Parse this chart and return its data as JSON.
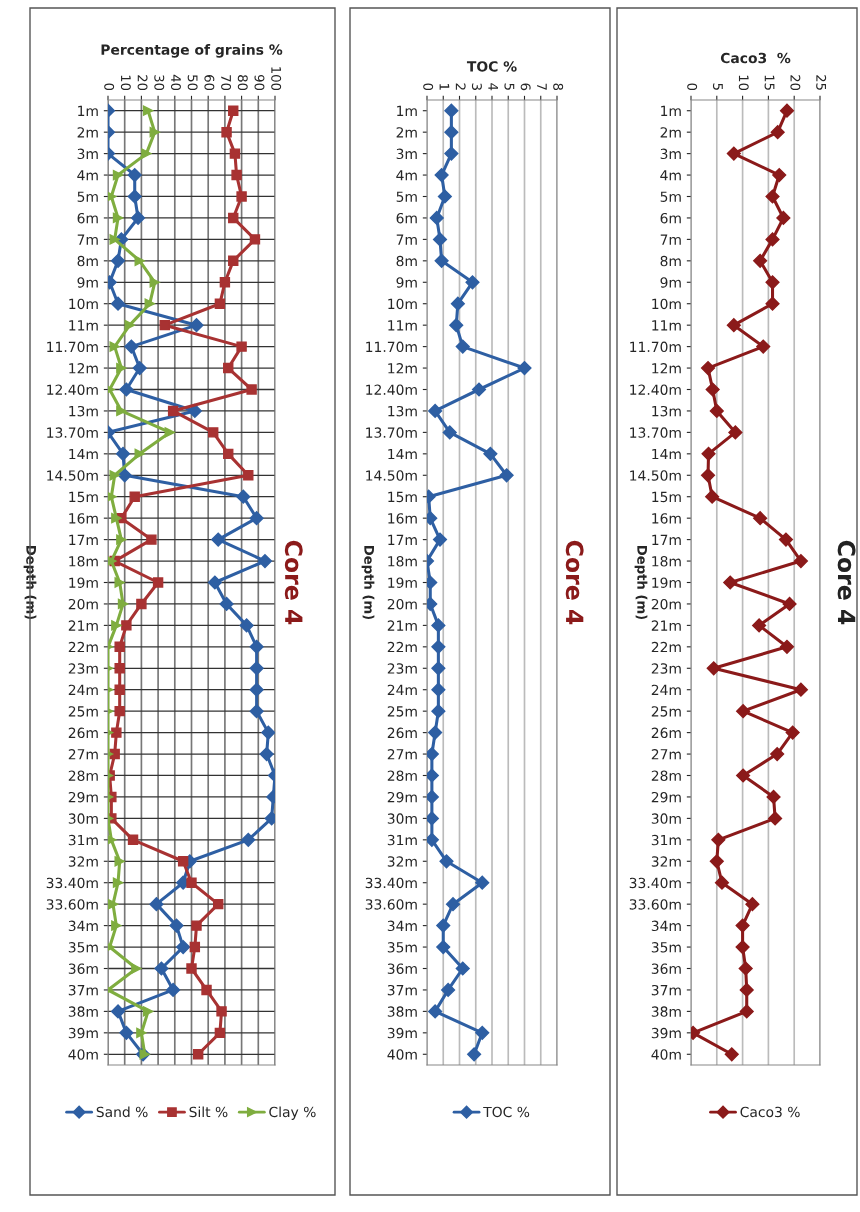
{
  "chart_data": [
    {
      "type": "line",
      "orientation": "horizontal",
      "title": "Core 4",
      "xlabel": "Percentage of grains %",
      "ylabel": "Depth (m)",
      "categories": [
        "1m",
        "2m",
        "3m",
        "4m",
        "5m",
        "6m",
        "7m",
        "8m",
        "9m",
        "10m",
        "11m",
        "11.70m",
        "12m",
        "12.40m",
        "13m",
        "13.70m",
        "14m",
        "14.50m",
        "15m",
        "16m",
        "17m",
        "18m",
        "19m",
        "20m",
        "21m",
        "22m",
        "23m",
        "24m",
        "25m",
        "26m",
        "27m",
        "28m",
        "29m",
        "30m",
        "31m",
        "32m",
        "33.40m",
        "33.60m",
        "34m",
        "35m",
        "36m",
        "37m",
        "38m",
        "39m",
        "40m"
      ],
      "series": [
        {
          "name": "Sand %",
          "color": "#2e5fa3",
          "marker": "diamond",
          "values": [
            0,
            0,
            0,
            16,
            16,
            18,
            8,
            6,
            1,
            6,
            53,
            14,
            19,
            11,
            52,
            0,
            9,
            10,
            81,
            89,
            66,
            94,
            64,
            71,
            83,
            89,
            89,
            89,
            89,
            96,
            95,
            100,
            99,
            98,
            84,
            49,
            45,
            29,
            41,
            45,
            32,
            39,
            6,
            11,
            21
          ]
        },
        {
          "name": "Silt %",
          "color": "#a83232",
          "marker": "square",
          "values": [
            75,
            71,
            76,
            77,
            80,
            75,
            88,
            75,
            70,
            67,
            34,
            80,
            72,
            86,
            39,
            63,
            72,
            84,
            16,
            8,
            26,
            4,
            30,
            20,
            11,
            7,
            7,
            7,
            7,
            5,
            4,
            1,
            2,
            2,
            15,
            45,
            50,
            66,
            53,
            52,
            50,
            59,
            68,
            67,
            54
          ]
        },
        {
          "name": "Clay %",
          "color": "#7fad3f",
          "marker": "triangle",
          "values": [
            24,
            28,
            23,
            6,
            2,
            6,
            4,
            19,
            28,
            25,
            13,
            4,
            8,
            1,
            8,
            37,
            19,
            4,
            2,
            5,
            8,
            2,
            7,
            9,
            5,
            0,
            0,
            0,
            0,
            0,
            0,
            0,
            0,
            0,
            2,
            7,
            6,
            3,
            5,
            1,
            17,
            0,
            24,
            20,
            22
          ]
        }
      ],
      "xlim": [
        0,
        100
      ],
      "xticks": [
        0,
        10,
        20,
        30,
        40,
        50,
        60,
        70,
        80,
        90,
        100
      ],
      "grid": true,
      "legend": "bottom"
    },
    {
      "type": "line",
      "orientation": "horizontal",
      "title": "Core 4",
      "xlabel": "TOC %",
      "ylabel": "Depth (m)",
      "categories": [
        "1m",
        "2m",
        "3m",
        "4m",
        "5m",
        "6m",
        "7m",
        "8m",
        "9m",
        "10m",
        "11m",
        "11.70m",
        "12m",
        "12.40m",
        "13m",
        "13.70m",
        "14m",
        "14.50m",
        "15m",
        "16m",
        "17m",
        "18m",
        "19m",
        "20m",
        "21m",
        "22m",
        "23m",
        "24m",
        "25m",
        "26m",
        "27m",
        "28m",
        "29m",
        "30m",
        "31m",
        "32m",
        "33.40m",
        "33.60m",
        "34m",
        "35m",
        "36m",
        "37m",
        "38m",
        "39m",
        "40m"
      ],
      "series": [
        {
          "name": "TOC %",
          "color": "#2e5fa3",
          "marker": "diamond",
          "values": [
            1.5,
            1.5,
            1.5,
            0.9,
            1.1,
            0.6,
            0.8,
            0.9,
            2.8,
            1.9,
            1.8,
            2.2,
            6.0,
            3.2,
            0.5,
            1.4,
            3.9,
            4.9,
            0.1,
            0.2,
            0.8,
            0.0,
            0.2,
            0.2,
            0.7,
            0.7,
            0.7,
            0.7,
            0.7,
            0.5,
            0.3,
            0.3,
            0.3,
            0.3,
            0.3,
            1.2,
            3.4,
            1.6,
            1.0,
            1.0,
            2.2,
            1.3,
            0.5,
            3.4,
            2.9
          ]
        }
      ],
      "xlim": [
        0,
        8
      ],
      "xticks": [
        0,
        1,
        2,
        3,
        4,
        5,
        6,
        7,
        8
      ],
      "grid": "x",
      "legend": "bottom"
    },
    {
      "type": "line",
      "orientation": "horizontal",
      "title": "Core 4",
      "xlabel": "Caco3  %",
      "ylabel": "Depth (m)",
      "categories": [
        "1m",
        "2m",
        "3m",
        "4m",
        "5m",
        "6m",
        "7m",
        "8m",
        "9m",
        "10m",
        "11m",
        "11.70m",
        "12m",
        "12.40m",
        "13m",
        "13.70m",
        "14m",
        "14.50m",
        "15m",
        "16m",
        "17m",
        "18m",
        "19m",
        "20m",
        "21m",
        "22m",
        "23m",
        "24m",
        "25m",
        "26m",
        "27m",
        "28m",
        "29m",
        "30m",
        "31m",
        "32m",
        "33.40m",
        "33.60m",
        "34m",
        "35m",
        "36m",
        "37m",
        "38m",
        "39m",
        "40m"
      ],
      "series": [
        {
          "name": "Caco3 %",
          "color": "#8b1a1a",
          "marker": "diamond",
          "values": [
            18.6,
            16.8,
            8.3,
            17.1,
            15.8,
            17.9,
            15.8,
            13.4,
            15.8,
            15.8,
            8.3,
            14.0,
            3.3,
            4.2,
            5.0,
            8.6,
            3.4,
            3.3,
            4.1,
            13.4,
            18.4,
            21.3,
            7.6,
            19.1,
            13.2,
            18.6,
            4.4,
            21.3,
            10.1,
            19.7,
            16.7,
            10.1,
            16.0,
            16.3,
            5.3,
            5.0,
            6.0,
            11.9,
            10.0,
            10.0,
            10.6,
            10.8,
            10.8,
            0.4,
            7.9
          ]
        }
      ],
      "xlim": [
        0,
        25
      ],
      "xticks": [
        0,
        5,
        10,
        15,
        20,
        25
      ],
      "grid": "x",
      "legend": "bottom"
    }
  ]
}
